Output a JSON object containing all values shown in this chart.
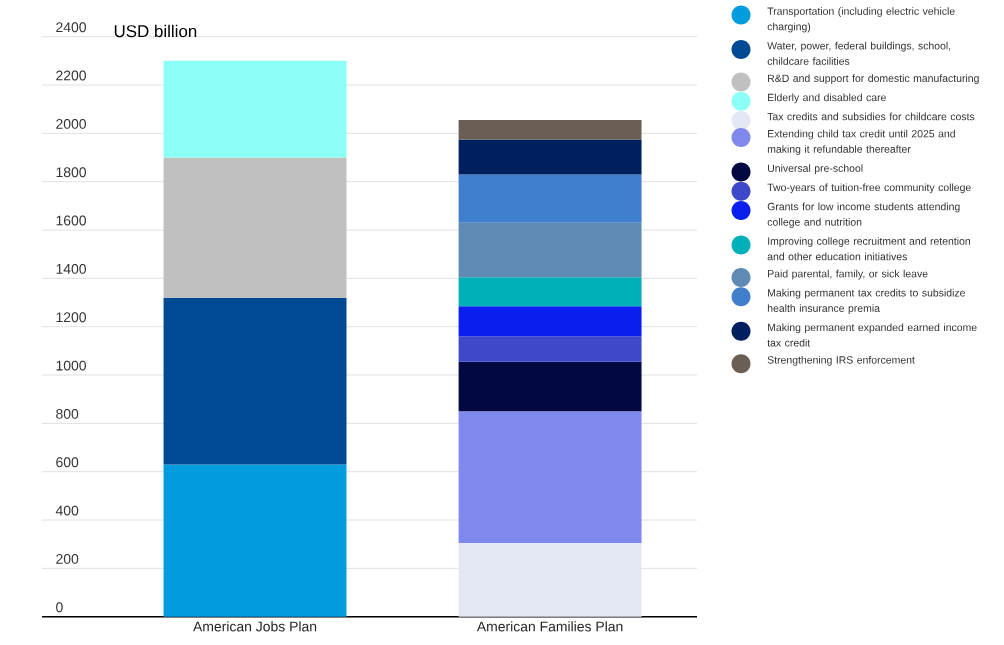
{
  "chart_data": {
    "type": "bar",
    "stacked": true,
    "ylabel": "USD billion",
    "categories": [
      "American Jobs Plan",
      "American Families Plan"
    ],
    "ylim": [
      0,
      2400
    ],
    "yticks": [
      0,
      200,
      400,
      600,
      800,
      1000,
      1200,
      1400,
      1600,
      1800,
      2000,
      2200,
      2400
    ],
    "grid": "y",
    "legend": "right",
    "marker": "circle",
    "series": [
      {
        "name": "Transportation (including electric vehicle charging)",
        "color": "#009cde",
        "values": [
          630,
          null
        ]
      },
      {
        "name": "Water, power, federal buildings, school, childcare facilities",
        "color": "#004a93",
        "values": [
          690,
          null
        ]
      },
      {
        "name": "R&D and support for domestic manufacturing",
        "color": "#c0c0c0",
        "values": [
          580,
          null
        ]
      },
      {
        "name": "Elderly and disabled care",
        "color": "#8cfff6",
        "values": [
          400,
          null
        ]
      },
      {
        "name": "Tax credits and subsidies for childcare costs",
        "color": "#e4e8f4",
        "values": [
          null,
          305
        ]
      },
      {
        "name": "Extending child tax credit until 2025 and making it refundable thereafter",
        "color": "#7f88ec",
        "values": [
          null,
          545
        ]
      },
      {
        "name": "Universal pre-school",
        "color": "#020842",
        "values": [
          null,
          205
        ]
      },
      {
        "name": "Two-years of tuition-free community college",
        "color": "#3f48c8",
        "values": [
          null,
          105
        ]
      },
      {
        "name": "Grants for low income students attending college and nutrition",
        "color": "#0a1ef0",
        "values": [
          null,
          125
        ]
      },
      {
        "name": "Improving college recruitment and retention and other education initiatives",
        "color": "#00b0b8",
        "values": [
          null,
          120
        ]
      },
      {
        "name": "Paid parental, family, or sick leave",
        "color": "#5e8ab4",
        "values": [
          null,
          225
        ]
      },
      {
        "name": "Making permanent tax credits to subsidize health insurance premia",
        "color": "#3f7fcb",
        "values": [
          null,
          200
        ]
      },
      {
        "name": "Making permanent expanded earned income tax credit",
        "color": "#001f5e",
        "values": [
          null,
          145
        ]
      },
      {
        "name": "Strengthening IRS enforcement",
        "color": "#6b5f55",
        "values": [
          null,
          80
        ]
      }
    ]
  }
}
